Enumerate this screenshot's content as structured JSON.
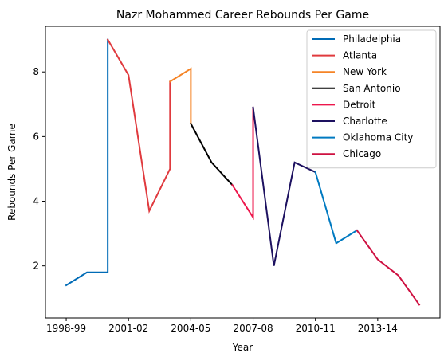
{
  "chart_data": {
    "type": "line",
    "title": "Nazr Mohammed Career Rebounds Per Game",
    "xlabel": "Year",
    "ylabel": "Rebounds Per Game",
    "x_ticks": [
      "1998-99",
      "2001-02",
      "2004-05",
      "2007-08",
      "2010-11",
      "2013-14"
    ],
    "x_tick_indices": [
      0,
      3,
      6,
      9,
      12,
      15
    ],
    "x_range": [
      -1,
      18
    ],
    "y_ticks": [
      2,
      4,
      6,
      8
    ],
    "y_range": [
      0.39,
      9.41
    ],
    "legend_position": "top-right",
    "series": [
      {
        "name": "Philadelphia",
        "color": "#006bb6",
        "points": [
          [
            0,
            1.4
          ],
          [
            1,
            1.8
          ],
          [
            2,
            1.8
          ],
          [
            2,
            9.0
          ]
        ]
      },
      {
        "name": "Atlanta",
        "color": "#e03a3e",
        "points": [
          [
            2,
            9.0
          ],
          [
            3,
            7.9
          ],
          [
            4,
            3.7
          ],
          [
            5,
            5.0
          ],
          [
            5,
            7.7
          ]
        ]
      },
      {
        "name": "New York",
        "color": "#f58426",
        "points": [
          [
            5,
            7.7
          ],
          [
            6,
            8.1
          ],
          [
            6,
            6.4
          ]
        ]
      },
      {
        "name": "San Antonio",
        "color": "#000000",
        "points": [
          [
            6,
            6.4
          ],
          [
            7,
            5.2
          ],
          [
            8,
            4.5
          ]
        ]
      },
      {
        "name": "Detroit",
        "color": "#ed174c",
        "points": [
          [
            8,
            4.5
          ],
          [
            9,
            3.5
          ],
          [
            9,
            6.9
          ]
        ]
      },
      {
        "name": "Charlotte",
        "color": "#1d1160",
        "points": [
          [
            9,
            6.9
          ],
          [
            10,
            2.0
          ],
          [
            11,
            5.2
          ],
          [
            12,
            4.9
          ]
        ]
      },
      {
        "name": "Oklahoma City",
        "color": "#007ac1",
        "points": [
          [
            12,
            4.9
          ],
          [
            13,
            2.7
          ],
          [
            14,
            3.1
          ]
        ]
      },
      {
        "name": "Chicago",
        "color": "#ce1141",
        "points": [
          [
            14,
            3.1
          ],
          [
            15,
            2.2
          ],
          [
            16,
            1.7
          ],
          [
            17,
            0.8
          ]
        ]
      }
    ]
  }
}
